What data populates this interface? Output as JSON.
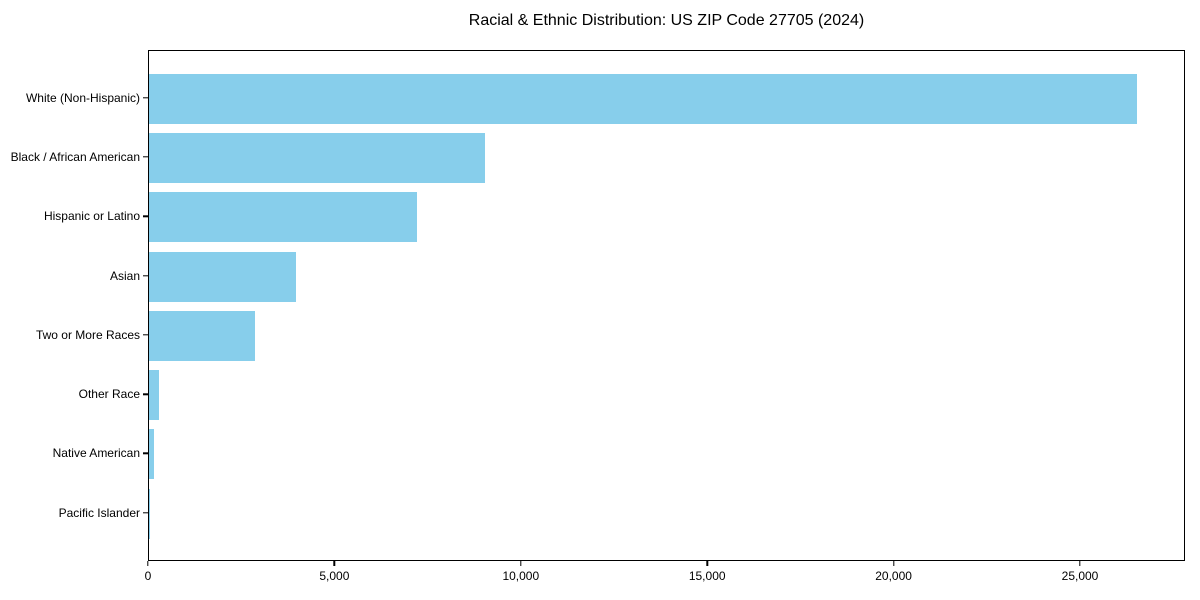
{
  "chart_data": {
    "type": "bar",
    "orientation": "horizontal",
    "title": "Racial & Ethnic Distribution: US ZIP Code 27705 (2024)",
    "categories": [
      "White (Non-Hispanic)",
      "Black / African American",
      "Hispanic or Latino",
      "Asian",
      "Two or More Races",
      "Other Race",
      "Native American",
      "Pacific Islander"
    ],
    "values": [
      26500,
      9000,
      7180,
      3950,
      2850,
      270,
      130,
      15
    ],
    "xlabel": "",
    "ylabel": "",
    "xlim": [
      0,
      27850
    ],
    "xticks": [
      0,
      5000,
      10000,
      15000,
      20000,
      25000
    ],
    "xtick_labels": [
      "0",
      "5,000",
      "10,000",
      "15,000",
      "20,000",
      "25,000"
    ],
    "grid": false,
    "legend": "none",
    "bar_color": "#87CEEB",
    "spine_color": "#000000"
  }
}
